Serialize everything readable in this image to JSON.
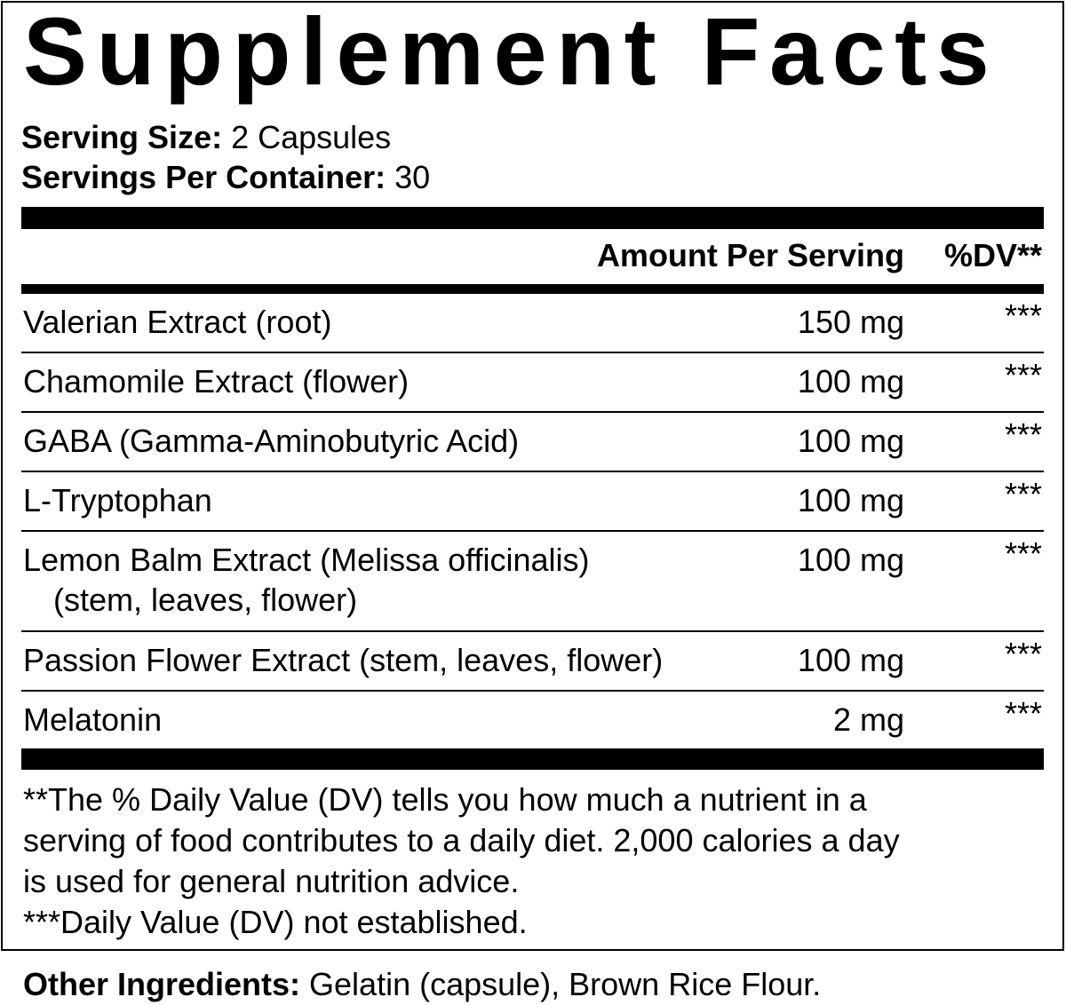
{
  "title": "Supplement Facts",
  "serving": {
    "size_label": "Serving Size:",
    "size_value": " 2 Capsules",
    "per_container_label": "Servings Per Container:",
    "per_container_value": " 30"
  },
  "header": {
    "amount": "Amount Per Serving",
    "dv": "%DV**"
  },
  "rows": [
    {
      "name": "Valerian Extract (root)",
      "sub": "",
      "amount": "150 mg",
      "dv": "***"
    },
    {
      "name": "Chamomile Extract (flower)",
      "sub": "",
      "amount": "100 mg",
      "dv": "***"
    },
    {
      "name": "GABA (Gamma-Aminobutyric Acid)",
      "sub": "",
      "amount": "100 mg",
      "dv": "***"
    },
    {
      "name": "L-Tryptophan",
      "sub": "",
      "amount": "100 mg",
      "dv": "***"
    },
    {
      "name": "Lemon Balm Extract (Melissa officinalis)",
      "sub": "(stem, leaves, flower)",
      "amount": "100 mg",
      "dv": "***"
    },
    {
      "name": "Passion Flower Extract (stem, leaves, flower)",
      "sub": "",
      "amount": "100 mg",
      "dv": "***"
    },
    {
      "name": "Melatonin",
      "sub": "",
      "amount": "2 mg",
      "dv": "***"
    }
  ],
  "footnotes": [
    "**The % Daily Value (DV) tells you how much a nutrient in a",
    "serving of food contributes to a daily diet. 2,000 calories a day",
    "is used for general nutrition advice.",
    "***Daily Value (DV) not established."
  ],
  "other_ingredients": {
    "label": "Other Ingredients:",
    "value": " Gelatin (capsule), Brown Rice Flour."
  }
}
